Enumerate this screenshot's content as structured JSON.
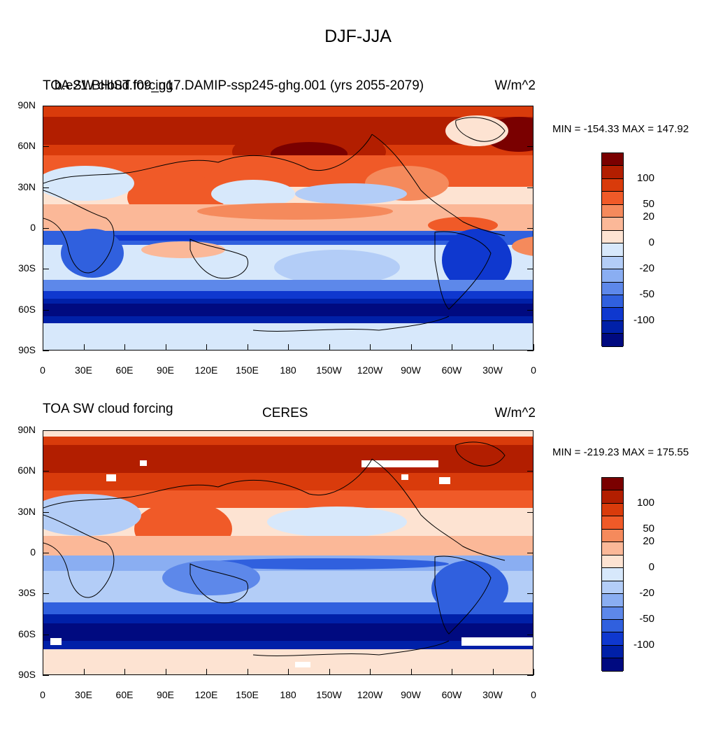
{
  "main_title": "DJF-JJA",
  "panels": [
    {
      "left_title": "TOA SW cloud forcing",
      "center_title": "b.e21.BHIST.f09_g17.DAMIP-ssp245-ghg.001 (yrs 2055-2079)",
      "right_title": "W/m^2",
      "min_max": "MIN = -154.33 MAX = 147.92"
    },
    {
      "left_title": "TOA SW cloud forcing",
      "center_title": "CERES",
      "right_title": "W/m^2",
      "min_max": "MIN = -219.23 MAX = 175.55"
    }
  ],
  "lat_labels": [
    "90N",
    "60N",
    "30N",
    "0",
    "30S",
    "60S",
    "90S"
  ],
  "lon_labels": [
    "0",
    "30E",
    "60E",
    "90E",
    "120E",
    "150E",
    "180",
    "150W",
    "120W",
    "90W",
    "60W",
    "30W",
    "0"
  ],
  "colorbar_labels": [
    "100",
    "50",
    "20",
    "0",
    "-20",
    "-50",
    "-100"
  ],
  "colorbar_colors": [
    "#7a0000",
    "#b21e00",
    "#d93b0b",
    "#f05a28",
    "#f58a5c",
    "#fbb898",
    "#fde3d2",
    "#d7e8fb",
    "#b3cdf7",
    "#8aaef2",
    "#5d88ea",
    "#3060de",
    "#0f38cf",
    "#0020a8",
    "#000a80"
  ]
}
